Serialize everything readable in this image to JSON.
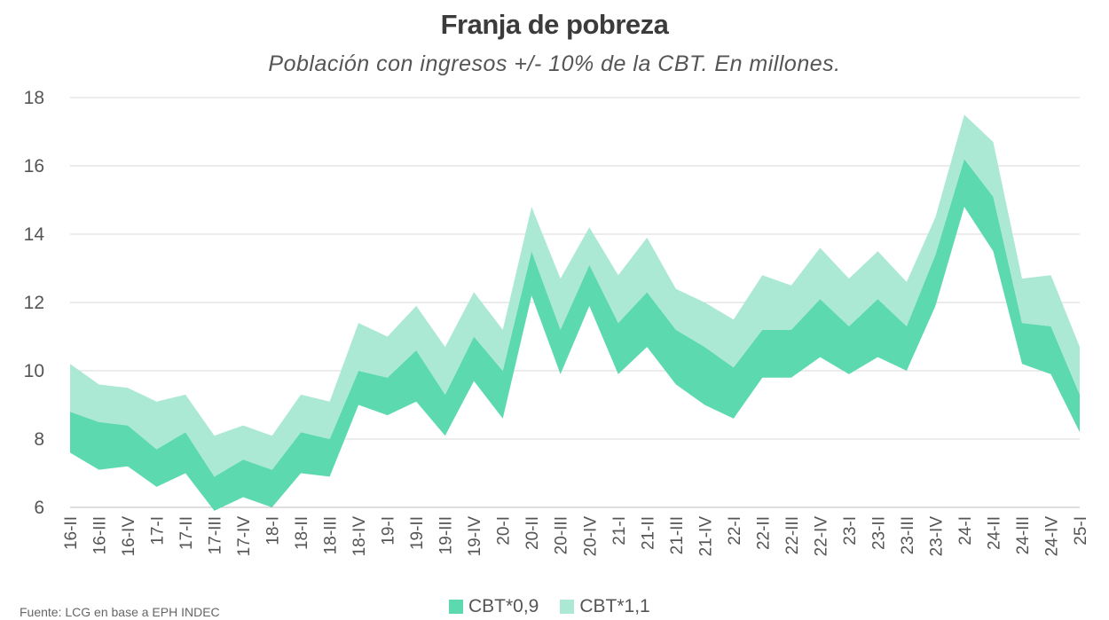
{
  "chart_data": {
    "type": "area",
    "title": "Franja de pobreza",
    "subtitle": "Población con ingresos +/- 10% de la CBT. En millones.",
    "ylim": [
      6,
      18
    ],
    "yticks": [
      6,
      8,
      10,
      12,
      14,
      16,
      18
    ],
    "grid": true,
    "legend_position": "bottom",
    "categories": [
      "16-II",
      "16-III",
      "16-IV",
      "17-I",
      "17-II",
      "17-III",
      "17-IV",
      "18-I",
      "18-II",
      "18-III",
      "18-IV",
      "19-I",
      "19-II",
      "19-III",
      "19-IV",
      "20-I",
      "20-II",
      "20-III",
      "20-IV",
      "21-I",
      "21-II",
      "21-III",
      "21-IV",
      "22-I",
      "22-II",
      "22-III",
      "22-IV",
      "23-I",
      "23-II",
      "23-III",
      "23-IV",
      "24-I",
      "24-II",
      "24-III",
      "24-IV",
      "25-I"
    ],
    "series": [
      {
        "name": "CBT*0,9",
        "color": "#5dd9b0",
        "lower": [
          7.6,
          7.1,
          7.2,
          6.6,
          7.0,
          5.9,
          6.3,
          6.0,
          7.0,
          6.9,
          9.0,
          8.7,
          9.1,
          8.1,
          9.7,
          8.6,
          12.2,
          9.9,
          11.9,
          9.9,
          10.7,
          9.6,
          9.0,
          8.6,
          9.8,
          9.8,
          10.4,
          9.9,
          10.4,
          10.0,
          11.9,
          14.8,
          13.5,
          10.2,
          9.9,
          8.2
        ],
        "upper": [
          8.8,
          8.5,
          8.4,
          7.7,
          8.2,
          6.9,
          7.4,
          7.1,
          8.2,
          8.0,
          10.0,
          9.8,
          10.6,
          9.3,
          11.0,
          10.0,
          13.5,
          11.2,
          13.1,
          11.4,
          12.3,
          11.2,
          10.7,
          10.1,
          11.2,
          11.2,
          12.1,
          11.3,
          12.1,
          11.3,
          13.4,
          16.2,
          15.1,
          11.4,
          11.3,
          9.3
        ]
      },
      {
        "name": "CBT*1,1",
        "color": "#ace9d5",
        "lower": [
          8.8,
          8.5,
          8.4,
          7.7,
          8.2,
          6.9,
          7.4,
          7.1,
          8.2,
          8.0,
          10.0,
          9.8,
          10.6,
          9.3,
          11.0,
          10.0,
          13.5,
          11.2,
          13.1,
          11.4,
          12.3,
          11.2,
          10.7,
          10.1,
          11.2,
          11.2,
          12.1,
          11.3,
          12.1,
          11.3,
          13.4,
          16.2,
          15.1,
          11.4,
          11.3,
          9.3
        ],
        "upper": [
          10.2,
          9.6,
          9.5,
          9.1,
          9.3,
          8.1,
          8.4,
          8.1,
          9.3,
          9.1,
          11.4,
          11.0,
          11.9,
          10.7,
          12.3,
          11.2,
          14.8,
          12.7,
          14.2,
          12.8,
          13.9,
          12.4,
          12.0,
          11.5,
          12.8,
          12.5,
          13.6,
          12.7,
          13.5,
          12.6,
          14.5,
          17.5,
          16.7,
          12.7,
          12.8,
          10.7
        ]
      }
    ]
  },
  "legend": {
    "items": [
      {
        "label": "CBT*0,9",
        "color": "#5dd9b0"
      },
      {
        "label": "CBT*1,1",
        "color": "#ace9d5"
      }
    ]
  },
  "source": "Fuente: LCG en base a EPH INDEC"
}
